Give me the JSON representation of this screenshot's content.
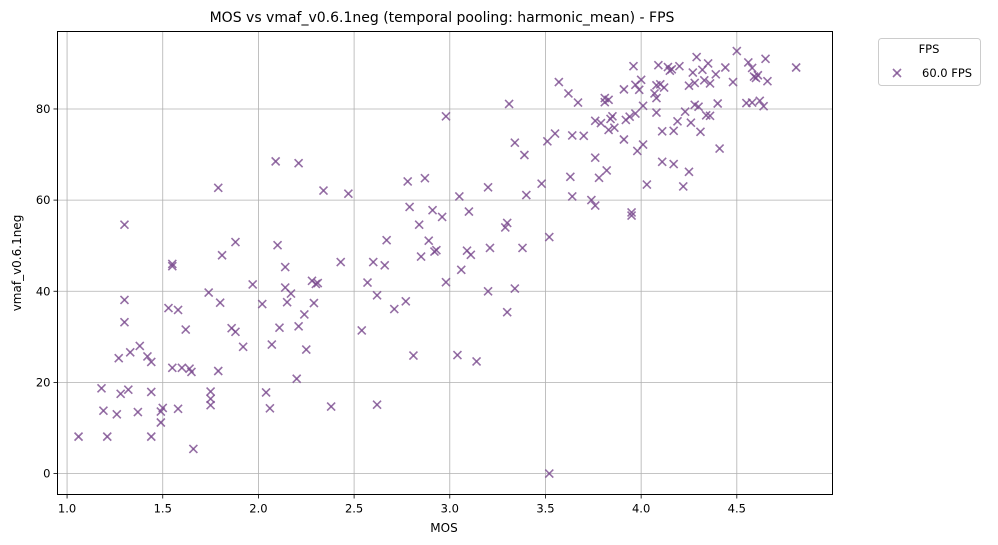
{
  "chart_data": {
    "type": "scatter",
    "title": "MOS vs vmaf_v0.6.1neg (temporal pooling: harmonic_mean) - FPS",
    "xlabel": "MOS",
    "ylabel": "vmaf_v0.6.1neg",
    "xlim": [
      0.95,
      5.0
    ],
    "ylim": [
      -4.6,
      97.0
    ],
    "x_ticks": [
      1.0,
      1.5,
      2.0,
      2.5,
      3.0,
      3.5,
      4.0,
      4.5
    ],
    "x_tick_labels": [
      "1.0",
      "1.5",
      "2.0",
      "2.5",
      "3.0",
      "3.5",
      "4.0",
      "4.5"
    ],
    "y_ticks": [
      0,
      20,
      40,
      60,
      80
    ],
    "y_tick_labels": [
      "0",
      "20",
      "40",
      "60",
      "80"
    ],
    "grid": true,
    "marker": "x",
    "legend": {
      "title": "FPS",
      "placement": "outside-top-right"
    },
    "series": [
      {
        "name": "60.0 FPS",
        "color": "#7b4b8e",
        "points": [
          [
            1.06,
            8.1
          ],
          [
            1.18,
            18.7
          ],
          [
            1.19,
            13.8
          ],
          [
            1.21,
            8.1
          ],
          [
            1.26,
            13.0
          ],
          [
            1.27,
            25.3
          ],
          [
            1.28,
            17.5
          ],
          [
            1.3,
            54.6
          ],
          [
            1.3,
            38.1
          ],
          [
            1.3,
            33.2
          ],
          [
            1.32,
            18.4
          ],
          [
            1.33,
            26.6
          ],
          [
            1.37,
            13.5
          ],
          [
            1.38,
            28.0
          ],
          [
            1.42,
            25.7
          ],
          [
            1.44,
            24.5
          ],
          [
            1.44,
            17.9
          ],
          [
            1.44,
            8.1
          ],
          [
            1.49,
            13.6
          ],
          [
            1.49,
            11.2
          ],
          [
            1.5,
            14.4
          ],
          [
            1.53,
            36.3
          ],
          [
            1.55,
            46.0
          ],
          [
            1.55,
            45.5
          ],
          [
            1.55,
            23.2
          ],
          [
            1.58,
            35.9
          ],
          [
            1.58,
            14.2
          ],
          [
            1.6,
            23.2
          ],
          [
            1.62,
            31.6
          ],
          [
            1.64,
            23.0
          ],
          [
            1.65,
            22.3
          ],
          [
            1.66,
            5.4
          ],
          [
            1.74,
            39.7
          ],
          [
            1.75,
            18.0
          ],
          [
            1.75,
            16.4
          ],
          [
            1.75,
            15.0
          ],
          [
            1.79,
            62.7
          ],
          [
            1.79,
            22.5
          ],
          [
            1.8,
            37.5
          ],
          [
            1.81,
            47.9
          ],
          [
            1.86,
            31.9
          ],
          [
            1.88,
            31.1
          ],
          [
            1.88,
            50.8
          ],
          [
            1.92,
            27.8
          ],
          [
            1.97,
            41.5
          ],
          [
            2.02,
            37.2
          ],
          [
            2.04,
            17.8
          ],
          [
            2.06,
            14.3
          ],
          [
            2.07,
            28.3
          ],
          [
            2.09,
            68.5
          ],
          [
            2.1,
            50.1
          ],
          [
            2.11,
            32.0
          ],
          [
            2.14,
            45.3
          ],
          [
            2.14,
            40.8
          ],
          [
            2.15,
            37.6
          ],
          [
            2.17,
            39.5
          ],
          [
            2.2,
            20.8
          ],
          [
            2.21,
            68.1
          ],
          [
            2.21,
            32.3
          ],
          [
            2.24,
            34.9
          ],
          [
            2.25,
            27.2
          ],
          [
            2.28,
            42.3
          ],
          [
            2.29,
            37.4
          ],
          [
            2.3,
            41.6
          ],
          [
            2.31,
            41.8
          ],
          [
            2.34,
            62.1
          ],
          [
            2.38,
            14.7
          ],
          [
            2.43,
            46.4
          ],
          [
            2.47,
            61.4
          ],
          [
            2.54,
            31.4
          ],
          [
            2.57,
            41.9
          ],
          [
            2.6,
            46.4
          ],
          [
            2.62,
            39.1
          ],
          [
            2.62,
            15.1
          ],
          [
            2.66,
            45.7
          ],
          [
            2.67,
            51.2
          ],
          [
            2.71,
            36.1
          ],
          [
            2.77,
            37.8
          ],
          [
            2.78,
            64.1
          ],
          [
            2.79,
            58.5
          ],
          [
            2.81,
            25.9
          ],
          [
            2.84,
            54.6
          ],
          [
            2.85,
            47.6
          ],
          [
            2.87,
            64.8
          ],
          [
            2.89,
            51.1
          ],
          [
            2.91,
            57.8
          ],
          [
            2.92,
            48.7
          ],
          [
            2.93,
            49.0
          ],
          [
            2.96,
            56.3
          ],
          [
            2.98,
            78.4
          ],
          [
            2.98,
            42.0
          ],
          [
            3.04,
            26.0
          ],
          [
            3.05,
            60.8
          ],
          [
            3.06,
            44.7
          ],
          [
            3.09,
            48.9
          ],
          [
            3.1,
            57.5
          ],
          [
            3.11,
            48.0
          ],
          [
            3.14,
            24.6
          ],
          [
            3.2,
            62.8
          ],
          [
            3.2,
            40.0
          ],
          [
            3.21,
            49.5
          ],
          [
            3.29,
            54.0
          ],
          [
            3.3,
            55.0
          ],
          [
            3.3,
            35.4
          ],
          [
            3.31,
            81.1
          ],
          [
            3.34,
            72.6
          ],
          [
            3.34,
            40.6
          ],
          [
            3.38,
            49.5
          ],
          [
            3.39,
            69.9
          ],
          [
            3.4,
            61.1
          ],
          [
            3.48,
            63.6
          ],
          [
            3.51,
            72.9
          ],
          [
            3.52,
            51.9
          ],
          [
            3.52,
            0.0
          ],
          [
            3.55,
            74.6
          ],
          [
            3.57,
            85.9
          ],
          [
            3.62,
            83.4
          ],
          [
            3.63,
            65.1
          ],
          [
            3.64,
            74.2
          ],
          [
            3.64,
            60.8
          ],
          [
            3.67,
            81.4
          ],
          [
            3.7,
            74.1
          ],
          [
            3.74,
            60.0
          ],
          [
            3.76,
            77.4
          ],
          [
            3.76,
            69.3
          ],
          [
            3.76,
            58.8
          ],
          [
            3.78,
            64.9
          ],
          [
            3.79,
            76.9
          ],
          [
            3.81,
            82.4
          ],
          [
            3.81,
            81.5
          ],
          [
            3.82,
            66.5
          ],
          [
            3.83,
            75.4
          ],
          [
            3.83,
            82.0
          ],
          [
            3.84,
            77.8
          ],
          [
            3.85,
            78.4
          ],
          [
            3.86,
            75.9
          ],
          [
            3.91,
            84.3
          ],
          [
            3.91,
            73.3
          ],
          [
            3.92,
            77.6
          ],
          [
            3.94,
            78.3
          ],
          [
            3.95,
            57.3
          ],
          [
            3.95,
            56.6
          ],
          [
            3.96,
            89.4
          ],
          [
            3.97,
            79.0
          ],
          [
            3.97,
            85.3
          ],
          [
            3.98,
            70.8
          ],
          [
            3.99,
            84.2
          ],
          [
            4.0,
            86.4
          ],
          [
            4.01,
            80.7
          ],
          [
            4.01,
            72.2
          ],
          [
            4.03,
            63.4
          ],
          [
            4.07,
            83.4
          ],
          [
            4.08,
            85.2
          ],
          [
            4.08,
            82.4
          ],
          [
            4.08,
            79.2
          ],
          [
            4.09,
            89.6
          ],
          [
            4.1,
            85.4
          ],
          [
            4.11,
            68.4
          ],
          [
            4.11,
            75.1
          ],
          [
            4.12,
            84.7
          ],
          [
            4.14,
            89.2
          ],
          [
            4.15,
            88.4
          ],
          [
            4.16,
            88.7
          ],
          [
            4.17,
            67.9
          ],
          [
            4.17,
            75.2
          ],
          [
            4.19,
            77.3
          ],
          [
            4.2,
            89.4
          ],
          [
            4.22,
            63.0
          ],
          [
            4.23,
            79.4
          ],
          [
            4.25,
            66.2
          ],
          [
            4.25,
            85.1
          ],
          [
            4.26,
            77.0
          ],
          [
            4.27,
            88.0
          ],
          [
            4.28,
            80.9
          ],
          [
            4.28,
            85.7
          ],
          [
            4.29,
            91.4
          ],
          [
            4.3,
            80.5
          ],
          [
            4.31,
            75.0
          ],
          [
            4.32,
            88.6
          ],
          [
            4.33,
            86.3
          ],
          [
            4.34,
            78.6
          ],
          [
            4.35,
            90.0
          ],
          [
            4.36,
            85.6
          ],
          [
            4.36,
            78.5
          ],
          [
            4.39,
            87.6
          ],
          [
            4.4,
            81.2
          ],
          [
            4.41,
            71.3
          ],
          [
            4.44,
            89.1
          ],
          [
            4.48,
            85.9
          ],
          [
            4.5,
            92.7
          ],
          [
            4.55,
            81.3
          ],
          [
            4.56,
            90.2
          ],
          [
            4.58,
            81.4
          ],
          [
            4.58,
            89.0
          ],
          [
            4.59,
            87.1
          ],
          [
            4.6,
            86.8
          ],
          [
            4.61,
            87.4
          ],
          [
            4.62,
            81.8
          ],
          [
            4.64,
            80.6
          ],
          [
            4.65,
            91.0
          ],
          [
            4.66,
            86.1
          ],
          [
            4.81,
            89.1
          ]
        ]
      }
    ]
  }
}
